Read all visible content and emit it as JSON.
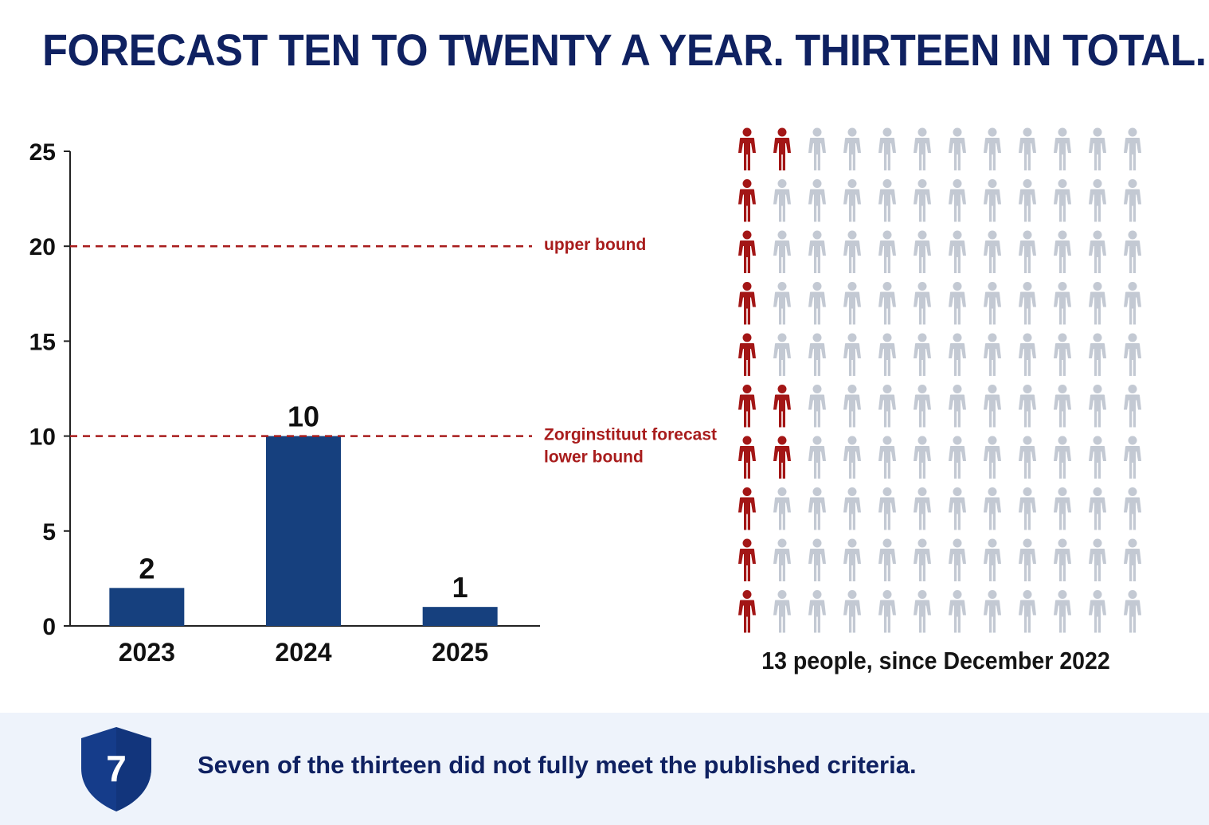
{
  "title": "FORECAST TEN TO TWENTY A YEAR. THIRTEEN IN TOTAL.",
  "chart_data": [
    {
      "type": "bar",
      "categories": [
        "2023",
        "2024",
        "2025"
      ],
      "values": [
        2,
        10,
        1
      ],
      "data_labels": [
        "2",
        "10",
        "1"
      ],
      "ylim": [
        0,
        25
      ],
      "yticks": [
        0,
        5,
        10,
        15,
        20,
        25
      ],
      "grid": false,
      "reference_lines": [
        {
          "value": 20,
          "label": "upper bound"
        },
        {
          "value": 10,
          "label": "Zorginstituut forecast,\nlower bound"
        }
      ],
      "colors": {
        "bar": "#16407e",
        "reference": "#a81c1c",
        "axis": "#222222"
      }
    },
    {
      "type": "pictogram",
      "rows": 10,
      "columns": 12,
      "highlighted_per_row": [
        2,
        1,
        1,
        1,
        1,
        2,
        2,
        1,
        1,
        1
      ],
      "highlighted_total": 13,
      "caption": "13 people, since December 2022",
      "colors": {
        "highlighted": "#a31616",
        "default": "#c3c9d3"
      }
    }
  ],
  "footer": {
    "badge_number": "7",
    "text": "Seven of the thirteen did not fully meet the published criteria.",
    "colors": {
      "badge": "#153c8a",
      "background": "#eef3fb"
    }
  }
}
